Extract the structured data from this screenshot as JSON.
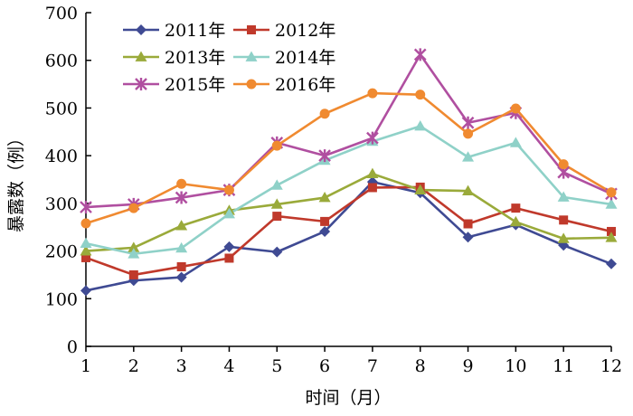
{
  "chart_data": {
    "type": "line",
    "title": "",
    "xlabel": "时间（月）",
    "ylabel": "暴露数（例）",
    "x": [
      1,
      2,
      3,
      4,
      5,
      6,
      7,
      8,
      9,
      10,
      11,
      12
    ],
    "xlim": [
      1,
      12
    ],
    "ylim": [
      0,
      700
    ],
    "yticks": [
      0,
      100,
      200,
      300,
      400,
      500,
      600,
      700
    ],
    "grid": false,
    "legend_position": "top-center",
    "series": [
      {
        "name": "2011年",
        "color": "#3f4a93",
        "marker": "diamond",
        "values": [
          117,
          138,
          145,
          209,
          198,
          241,
          345,
          322,
          229,
          255,
          212,
          173
        ]
      },
      {
        "name": "2012年",
        "color": "#c0392b",
        "marker": "square",
        "values": [
          186,
          150,
          167,
          185,
          273,
          262,
          333,
          334,
          257,
          290,
          265,
          241
        ]
      },
      {
        "name": "2013年",
        "color": "#9aaa3a",
        "marker": "triangle",
        "values": [
          200,
          207,
          253,
          285,
          298,
          312,
          362,
          328,
          326,
          261,
          226,
          228
        ]
      },
      {
        "name": "2014年",
        "color": "#8fd1c8",
        "marker": "triangle",
        "values": [
          216,
          194,
          206,
          278,
          338,
          390,
          430,
          462,
          397,
          427,
          313,
          298
        ]
      },
      {
        "name": "2015年",
        "color": "#b04fa0",
        "marker": "star",
        "values": [
          292,
          298,
          312,
          328,
          427,
          400,
          437,
          612,
          469,
          490,
          365,
          320
        ]
      },
      {
        "name": "2016年",
        "color": "#f08a30",
        "marker": "circle",
        "values": [
          258,
          290,
          341,
          328,
          421,
          488,
          531,
          528,
          446,
          499,
          382,
          323
        ]
      }
    ]
  }
}
